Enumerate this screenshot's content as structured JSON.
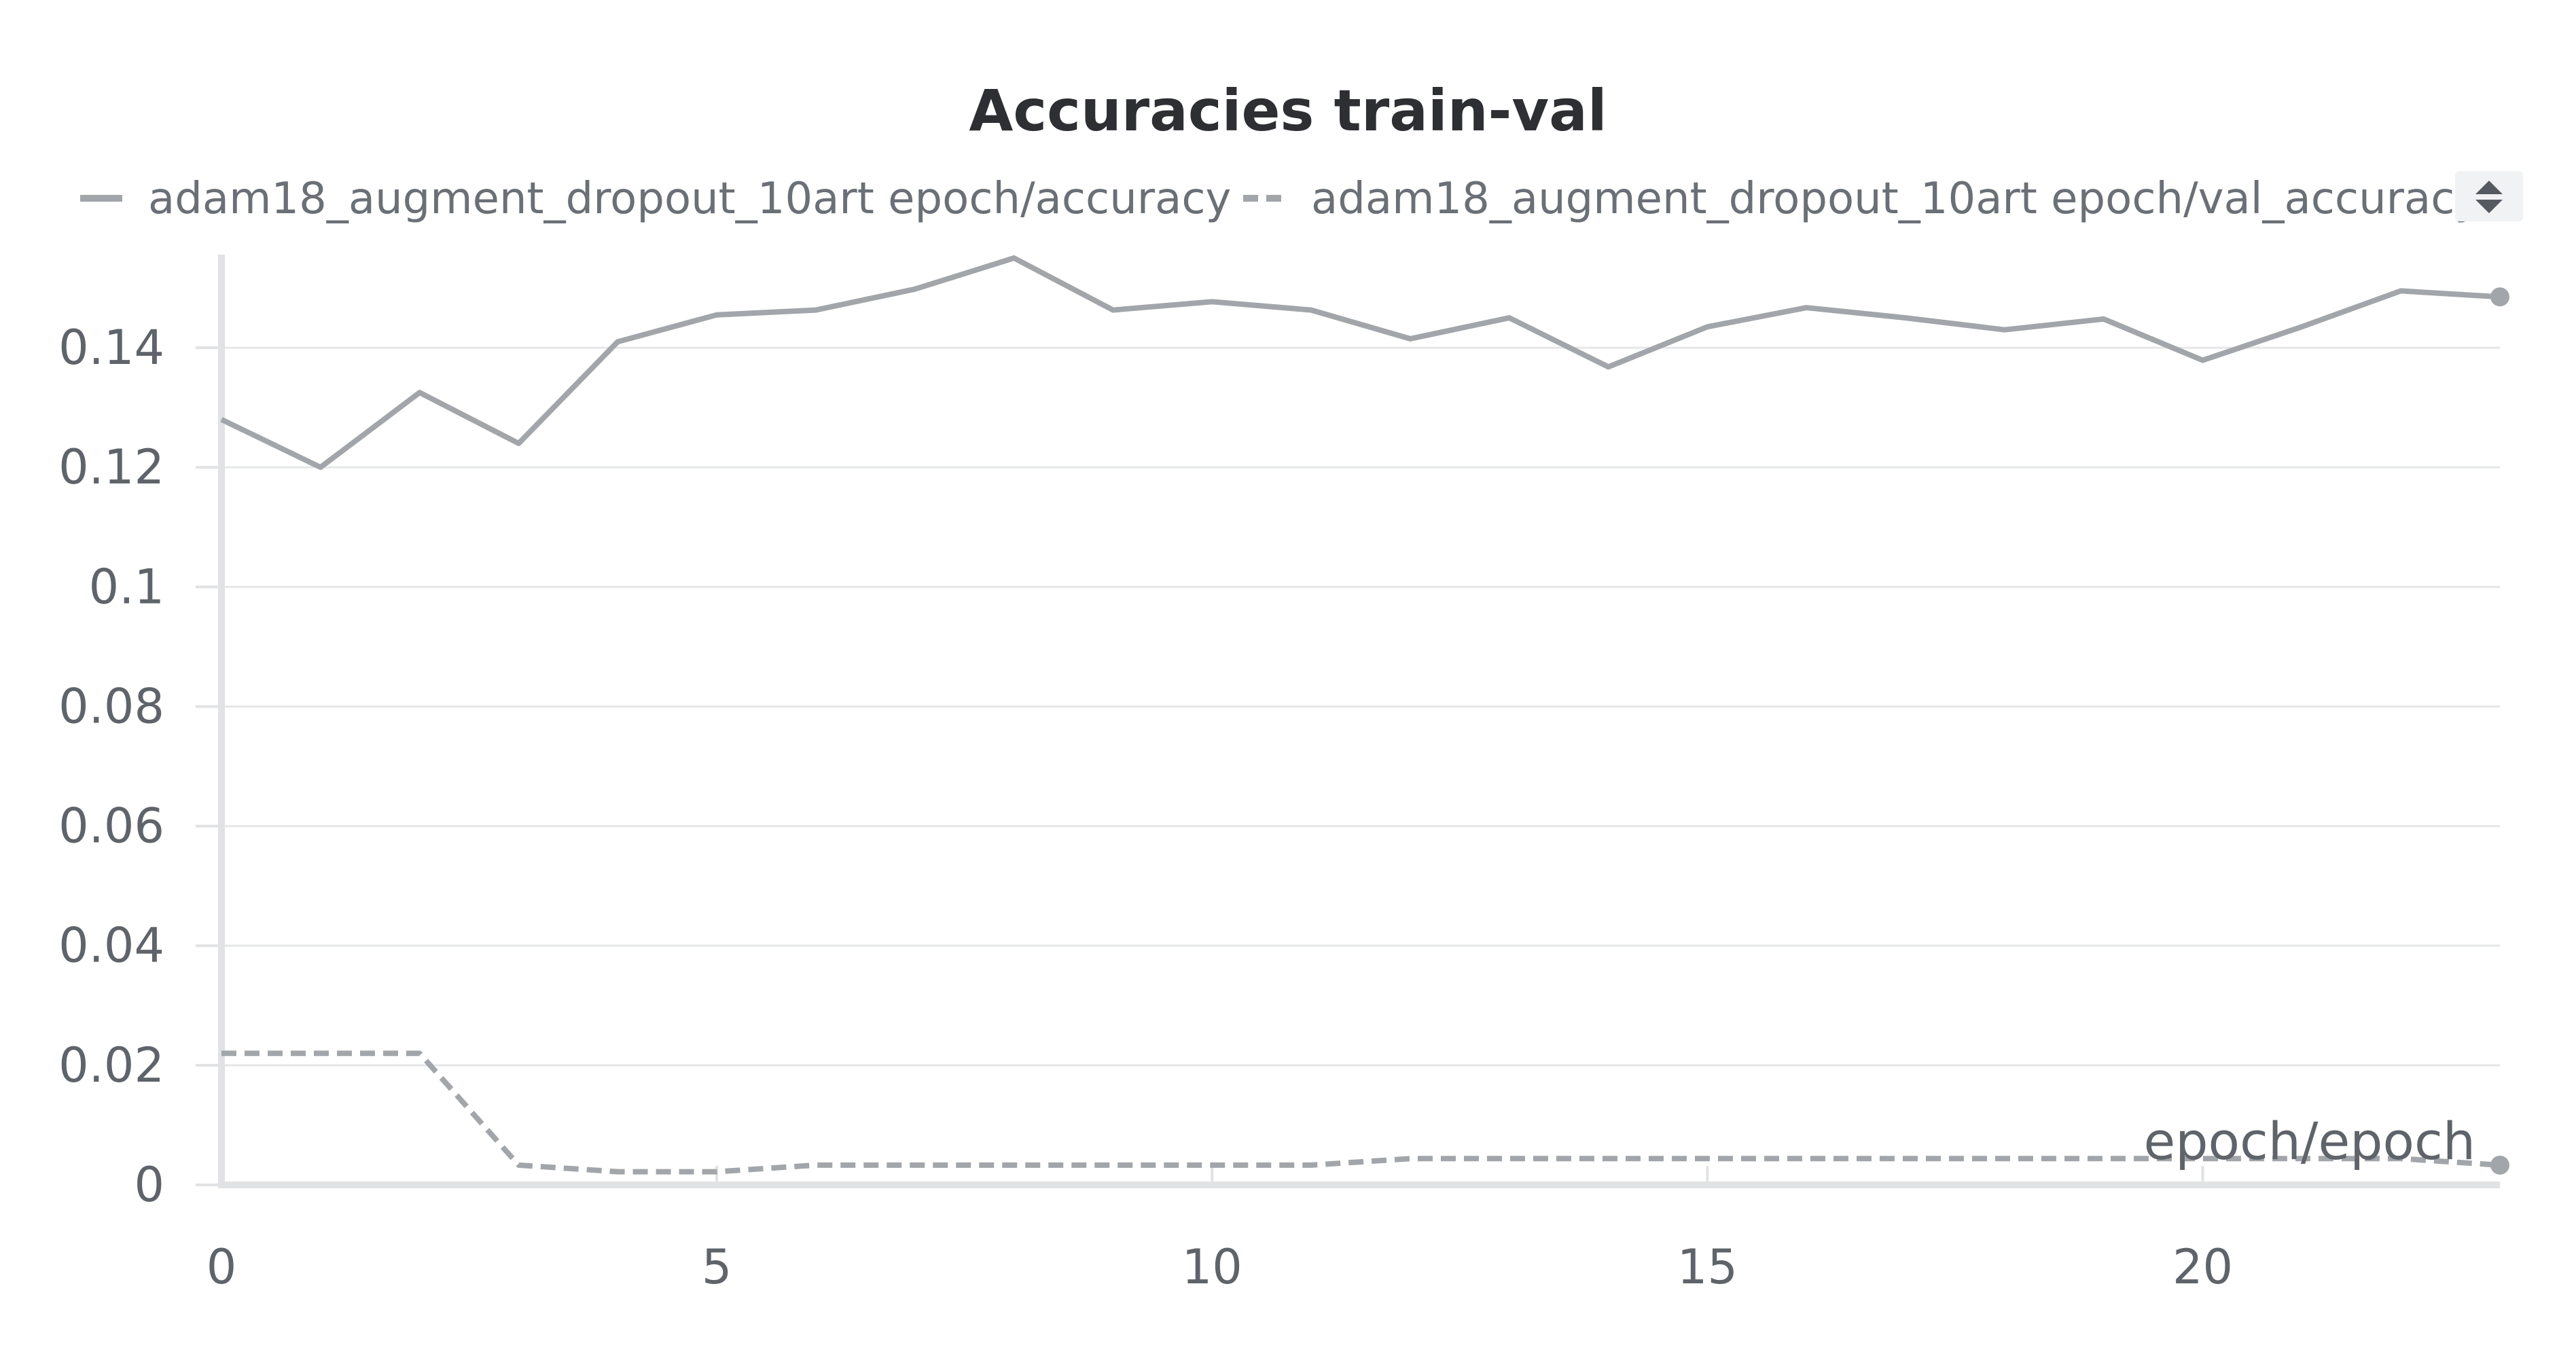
{
  "chart_data": {
    "type": "line",
    "title": "Accuracies train-val",
    "xlabel": "epoch/epoch",
    "ylabel": "",
    "xlim": [
      0,
      23
    ],
    "ylim": [
      0,
      0.155
    ],
    "x_ticks": [
      0,
      5,
      10,
      15,
      20
    ],
    "x_tick_labels": [
      "0",
      "5",
      "10",
      "15",
      "20"
    ],
    "y_ticks": [
      0,
      0.02,
      0.04,
      0.06,
      0.08,
      0.1,
      0.12,
      0.14
    ],
    "y_tick_labels": [
      "0",
      "0.02",
      "0.04",
      "0.06",
      "0.08",
      "0.1",
      "0.12",
      "0.14"
    ],
    "grid": true,
    "legend_position": "top",
    "x": [
      0,
      1,
      2,
      3,
      4,
      5,
      6,
      7,
      8,
      9,
      10,
      11,
      12,
      13,
      14,
      15,
      16,
      17,
      18,
      19,
      20,
      21,
      22,
      23
    ],
    "series": [
      {
        "name": "adam18_augment_dropout_10art epoch/accuracy",
        "style": "solid",
        "color": "#a2a6aa",
        "values": [
          0.128,
          0.12,
          0.1325,
          0.124,
          0.141,
          0.1455,
          0.1463,
          0.1498,
          0.155,
          0.1463,
          0.1477,
          0.1463,
          0.1415,
          0.145,
          0.1368,
          0.1435,
          0.1467,
          0.145,
          0.143,
          0.1448,
          0.1379,
          0.1435,
          0.1495,
          0.1485
        ]
      },
      {
        "name": "adam18_augment_dropout_10art epoch/val_accuracy",
        "style": "dashed",
        "color": "#a2a6aa",
        "values": [
          0.022,
          0.022,
          0.022,
          0.0033,
          0.0022,
          0.0022,
          0.0033,
          0.0033,
          0.0033,
          0.0033,
          0.0033,
          0.0033,
          0.0044,
          0.0044,
          0.0044,
          0.0044,
          0.0044,
          0.0044,
          0.0044,
          0.0044,
          0.0044,
          0.0044,
          0.0044,
          0.0033
        ]
      }
    ]
  }
}
